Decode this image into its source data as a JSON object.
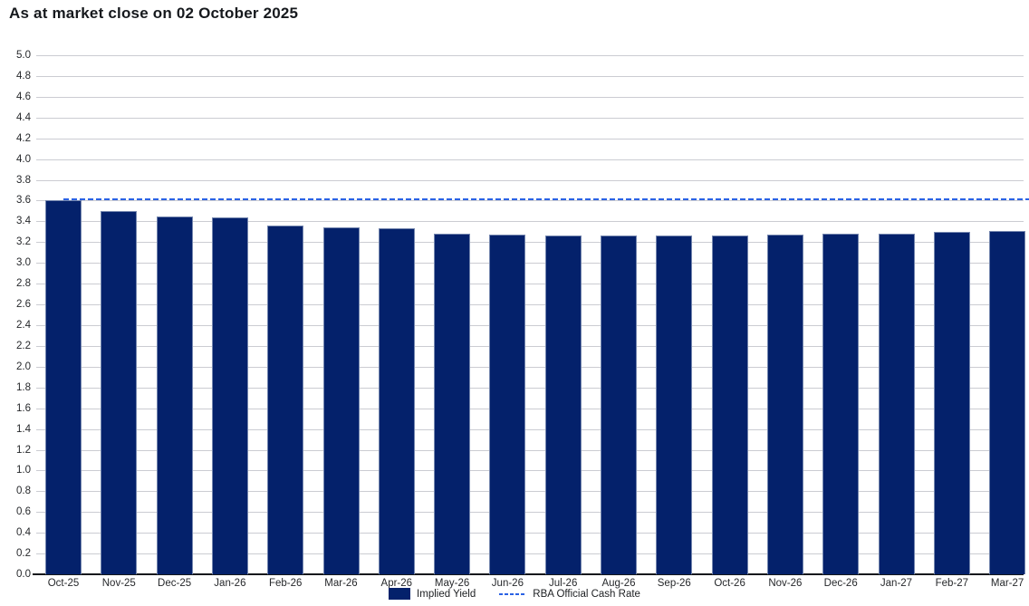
{
  "page": {
    "title": "As at market close on 02 October 2025"
  },
  "chart_data": {
    "type": "bar",
    "title": "As at market close on 02 October 2025",
    "categories": [
      "Oct-25",
      "Nov-25",
      "Dec-25",
      "Jan-26",
      "Feb-26",
      "Mar-26",
      "Apr-26",
      "May-26",
      "Jun-26",
      "Jul-26",
      "Aug-26",
      "Sep-26",
      "Oct-26",
      "Nov-26",
      "Dec-26",
      "Jan-27",
      "Feb-27",
      "Mar-27"
    ],
    "series": [
      {
        "name": "Implied Yield",
        "type": "bar",
        "values": [
          3.6,
          3.5,
          3.45,
          3.44,
          3.36,
          3.34,
          3.33,
          3.28,
          3.27,
          3.26,
          3.26,
          3.26,
          3.26,
          3.27,
          3.28,
          3.28,
          3.3,
          3.31
        ],
        "color": "#04216b",
        "border_color": "#7486ae"
      },
      {
        "name": "RBA Official Cash Rate",
        "type": "line",
        "style": "dashed",
        "value": 3.6,
        "color": "#2a62e4"
      }
    ],
    "xlabel": "",
    "ylabel": "",
    "ylim": [
      0.0,
      5.0
    ],
    "ytick_step": 0.2,
    "grid": true,
    "legend_position": "bottom-center"
  },
  "colors": {
    "background": "#ffffff",
    "gridline": "#cbccd2",
    "axis": "#15181c",
    "tick_text": "#26282b",
    "title_text": "#16191d"
  }
}
